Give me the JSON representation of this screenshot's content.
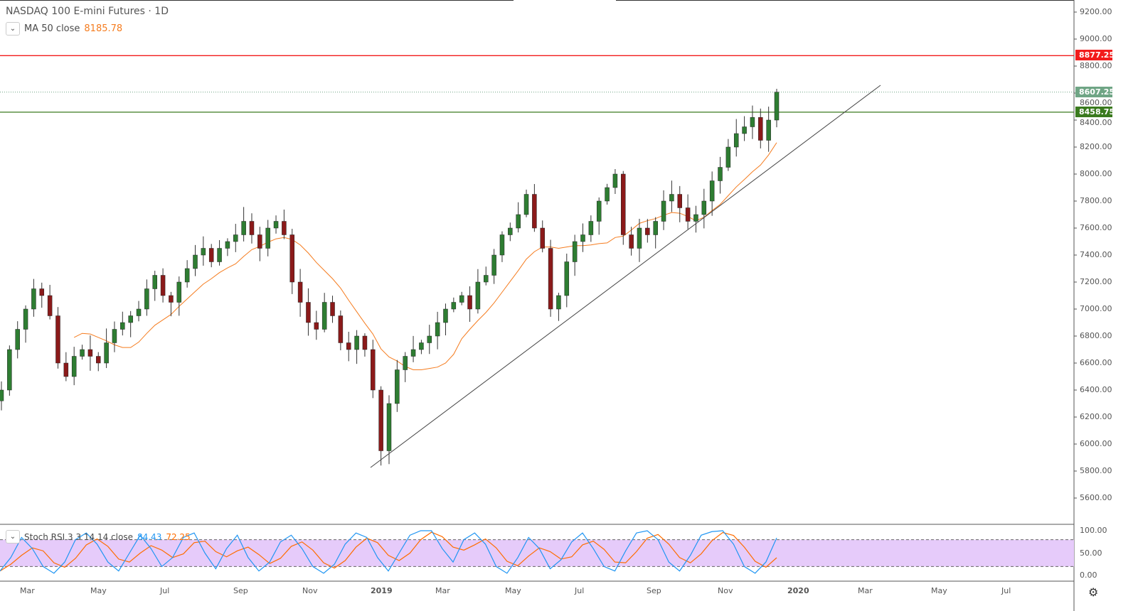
{
  "header": {
    "title": "NASDAQ 100 E-mini Futures · 1D",
    "ma_label": "MA 50 close",
    "ma_value": "8185.78",
    "stoch_label": "Stoch RSI 3 3 14 14 close",
    "stoch_k": "84.43",
    "stoch_d": "72.25"
  },
  "colors": {
    "up": "#2e7d32",
    "down": "#8b1a1a",
    "ma": "#f57c1f",
    "red_line": "#f21c1c",
    "green_line": "#3a7a1e",
    "last_price": "#6fa585",
    "stoch_k": "#2196f3",
    "stoch_d": "#ff6d00",
    "band": "#e6cbfa"
  },
  "price_axis": [
    "9200.00",
    "9000.00",
    "8800.00",
    "8600.00",
    "8400.00",
    "8200.00",
    "8000.00",
    "7800.00",
    "7600.00",
    "7400.00",
    "7200.00",
    "7000.00",
    "6800.00",
    "6600.00",
    "6400.00",
    "6200.00",
    "6000.00",
    "5800.00",
    "5600.00"
  ],
  "tags": {
    "resistance": "8877.25",
    "last": "8607.25",
    "support": "8458.75"
  },
  "stoch_axis": [
    "100.00",
    "50.00",
    "0.00"
  ],
  "time_axis": [
    "Mar",
    "May",
    "Jul",
    "Sep",
    "Nov",
    "2019",
    "Mar",
    "May",
    "Jul",
    "Sep",
    "Nov",
    "2020",
    "Mar",
    "May",
    "Jul"
  ],
  "chart_data": {
    "type": "candlestick",
    "interval": "weekly approximation",
    "ylim": [
      5500,
      9300
    ],
    "closes": [
      6400,
      6700,
      6850,
      7000,
      7150,
      7100,
      6950,
      6600,
      6500,
      6650,
      6700,
      6650,
      6600,
      6750,
      6850,
      6900,
      6950,
      7000,
      7150,
      7250,
      7100,
      7050,
      7200,
      7300,
      7400,
      7450,
      7350,
      7450,
      7500,
      7550,
      7650,
      7550,
      7450,
      7600,
      7650,
      7550,
      7200,
      7050,
      6900,
      6850,
      7050,
      6950,
      6750,
      6700,
      6800,
      6700,
      6400,
      5950,
      6300,
      6550,
      6650,
      6700,
      6750,
      6800,
      6900,
      7000,
      7050,
      7100,
      7000,
      7200,
      7250,
      7400,
      7550,
      7600,
      7700,
      7850,
      7600,
      7450,
      7000,
      7100,
      7350,
      7500,
      7550,
      7650,
      7800,
      7900,
      8000,
      7550,
      7450,
      7600,
      7550,
      7650,
      7800,
      7850,
      7750,
      7650,
      7700,
      7800,
      7950,
      8050,
      8200,
      8300,
      8350,
      8420,
      8250,
      8400,
      8607
    ],
    "stoch_k": [
      10,
      40,
      85,
      60,
      20,
      5,
      30,
      80,
      95,
      70,
      30,
      10,
      50,
      90,
      60,
      20,
      40,
      85,
      95,
      50,
      15,
      60,
      90,
      40,
      10,
      30,
      75,
      90,
      60,
      20,
      5,
      25,
      70,
      95,
      85,
      40,
      10,
      50,
      90,
      100,
      100,
      60,
      30,
      80,
      95,
      70,
      20,
      5,
      40,
      85,
      60,
      15,
      35,
      75,
      95,
      60,
      20,
      10,
      55,
      95,
      100,
      80,
      30,
      10,
      45,
      90,
      98,
      100,
      70,
      20,
      5,
      30,
      84
    ]
  }
}
